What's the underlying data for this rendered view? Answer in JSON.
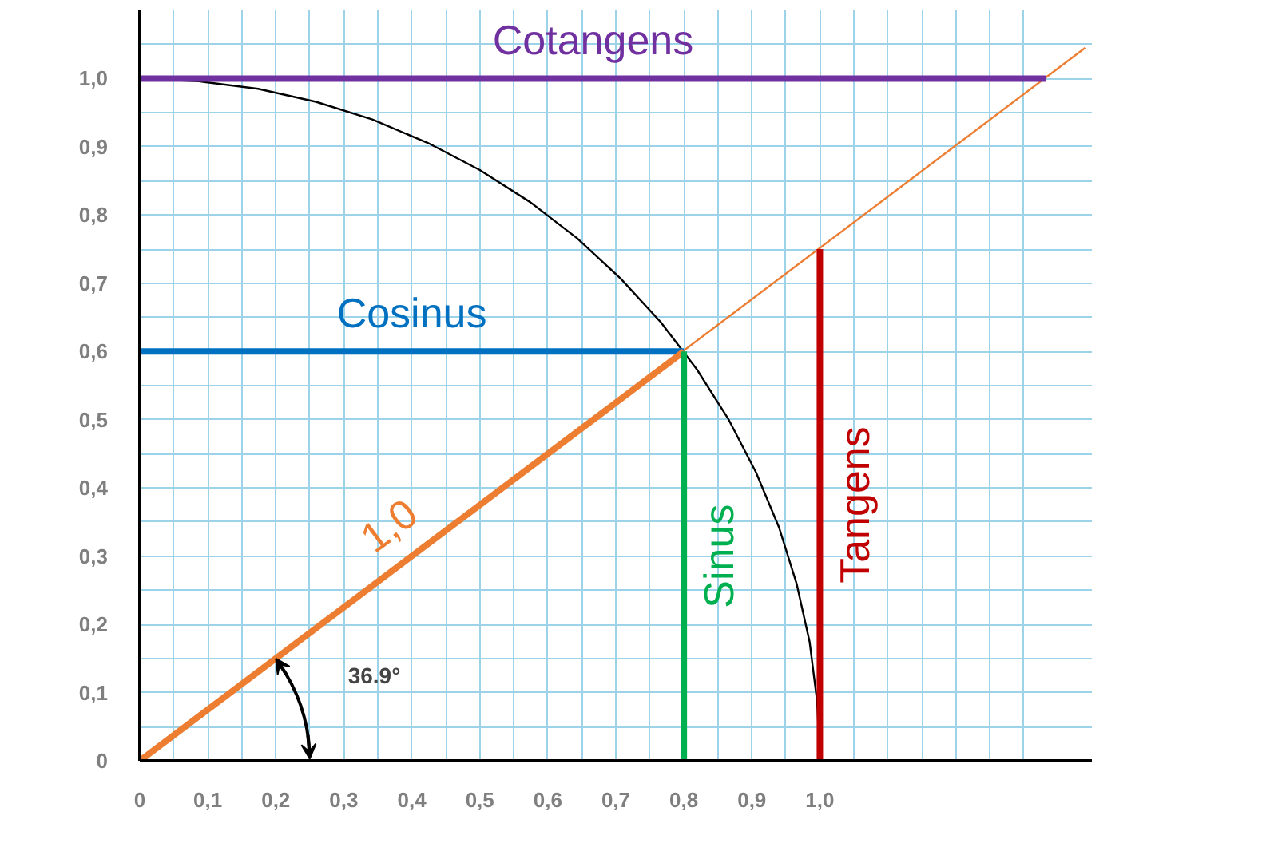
{
  "chart_data": {
    "type": "line",
    "xlim": [
      0,
      1.4
    ],
    "ylim": [
      0,
      1.1
    ],
    "xticks": [
      0,
      {
        "value": 0.05,
        "label": null
      },
      {
        "value": 0.1,
        "label": "0,1"
      },
      {
        "value": 0.15,
        "label": null
      },
      {
        "value": 0.2,
        "label": "0,2"
      },
      {
        "value": 0.25,
        "label": null
      },
      {
        "value": 0.3,
        "label": "0,3"
      },
      {
        "value": 0.35,
        "label": null
      },
      {
        "value": 0.4,
        "label": "0,4"
      },
      {
        "value": 0.45,
        "label": null
      },
      {
        "value": 0.5,
        "label": "0,5"
      },
      {
        "value": 0.55,
        "label": null
      },
      {
        "value": 0.6,
        "label": "0,6"
      },
      {
        "value": 0.65,
        "label": null
      },
      {
        "value": 0.7,
        "label": "0,7"
      },
      {
        "value": 0.75,
        "label": null
      },
      {
        "value": 0.8,
        "label": "0,8"
      },
      {
        "value": 0.85,
        "label": null
      },
      {
        "value": 0.9,
        "label": "0,9"
      },
      {
        "value": 0.95,
        "label": null
      },
      {
        "value": 1.0,
        "label": "1,0"
      },
      {
        "value": 1.05,
        "label": null
      },
      {
        "value": 1.1,
        "label": null
      },
      {
        "value": 1.15,
        "label": null
      },
      {
        "value": 1.2,
        "label": null
      },
      {
        "value": 1.25,
        "label": null
      },
      {
        "value": 1.3,
        "label": null
      }
    ],
    "yticks": [
      0,
      {
        "value": 0.05,
        "label": null
      },
      {
        "value": 0.1,
        "label": "0,1"
      },
      {
        "value": 0.15,
        "label": null
      },
      {
        "value": 0.2,
        "label": "0,2"
      },
      {
        "value": 0.25,
        "label": null
      },
      {
        "value": 0.3,
        "label": "0,3"
      },
      {
        "value": 0.35,
        "label": null
      },
      {
        "value": 0.4,
        "label": "0,4"
      },
      {
        "value": 0.45,
        "label": null
      },
      {
        "value": 0.5,
        "label": "0,5"
      },
      {
        "value": 0.55,
        "label": null
      },
      {
        "value": 0.6,
        "label": "0,6"
      },
      {
        "value": 0.65,
        "label": null
      },
      {
        "value": 0.7,
        "label": "0,7"
      },
      {
        "value": 0.75,
        "label": null
      },
      {
        "value": 0.8,
        "label": "0,8"
      },
      {
        "value": 0.85,
        "label": null
      },
      {
        "value": 0.9,
        "label": "0,9"
      },
      {
        "value": 0.95,
        "label": null
      },
      {
        "value": 1.0,
        "label": "1,0"
      },
      {
        "value": 1.05,
        "label": null
      }
    ],
    "grid": true,
    "marker": "none",
    "line_style": "solid",
    "series": [
      {
        "color": "#000000",
        "x": [
          0,
          0.087,
          0.174,
          0.259,
          0.342,
          0.423,
          0.5,
          0.574,
          0.643,
          0.707,
          0.766,
          0.819,
          0.866,
          0.906,
          0.94,
          0.966,
          0.985,
          0.996,
          1.0
        ],
        "values": [
          1,
          0.996,
          0.985,
          0.966,
          0.94,
          0.906,
          0.866,
          0.819,
          0.766,
          0.707,
          0.643,
          0.574,
          0.5,
          0.423,
          0.342,
          0.259,
          0.174,
          0.087,
          0
        ]
      },
      {
        "color": "#ed7d31",
        "x": [
          0,
          1.39
        ],
        "values": [
          0,
          1.045
        ]
      },
      {
        "name": "Cotangens",
        "color": "#7030a0",
        "x": [
          0,
          1.333
        ],
        "values": [
          1,
          1
        ]
      },
      {
        "name": "Cosinus",
        "color": "#0070c0",
        "x": [
          0,
          0.8
        ],
        "values": [
          0.6,
          0.6
        ]
      },
      {
        "name": "1,0",
        "color": "#ed7d31",
        "x": [
          0,
          0.8
        ],
        "values": [
          0,
          0.6
        ]
      },
      {
        "name": "Sinus",
        "color": "#00b050",
        "x": [
          0.8,
          0.8
        ],
        "values": [
          0,
          0.6
        ]
      },
      {
        "name": "Tangens",
        "color": "#c00000",
        "x": [
          1,
          1
        ],
        "values": [
          0,
          0.75
        ]
      }
    ],
    "annotations": [
      "36.9°"
    ]
  }
}
